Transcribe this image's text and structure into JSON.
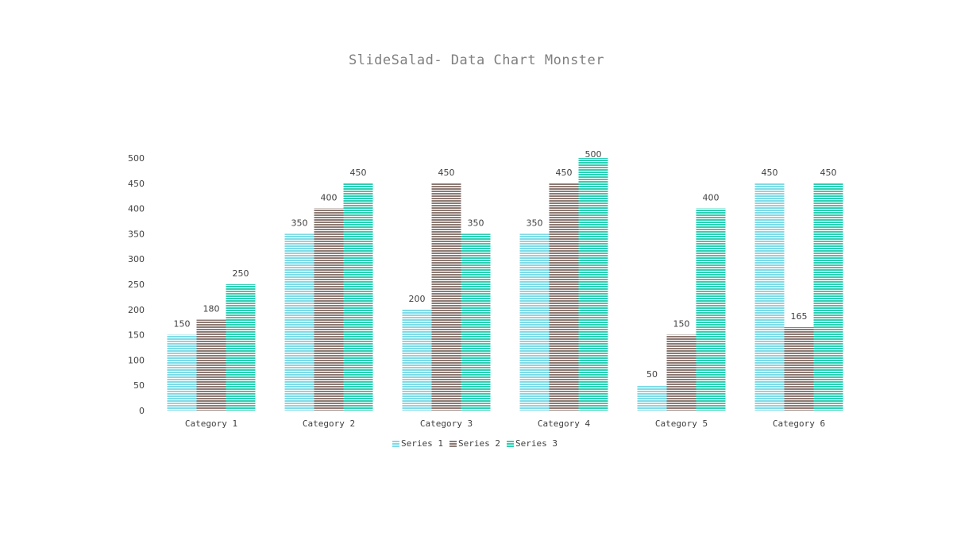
{
  "chart_data": {
    "type": "bar",
    "title": "SlideSalad- Data Chart Monster",
    "xlabel": "",
    "ylabel": "",
    "ylim": [
      0,
      500
    ],
    "yticks": [
      0,
      50,
      100,
      150,
      200,
      250,
      300,
      350,
      400,
      450,
      500
    ],
    "grid": false,
    "legend_position": "bottom",
    "data_labels": true,
    "categories": [
      "Category 1",
      "Category 2",
      "Category 3",
      "Category 4",
      "Category 5",
      "Category 6"
    ],
    "series": [
      {
        "name": "Series 1",
        "values": [
          150,
          350,
          200,
          350,
          50,
          450
        ],
        "color": "#7fdbe6"
      },
      {
        "name": "Series 2",
        "values": [
          180,
          400,
          450,
          450,
          150,
          165
        ],
        "color": "#8c7a74"
      },
      {
        "name": "Series 3",
        "values": [
          250,
          450,
          350,
          500,
          400,
          450
        ],
        "color": "#2ecfb4"
      }
    ]
  }
}
